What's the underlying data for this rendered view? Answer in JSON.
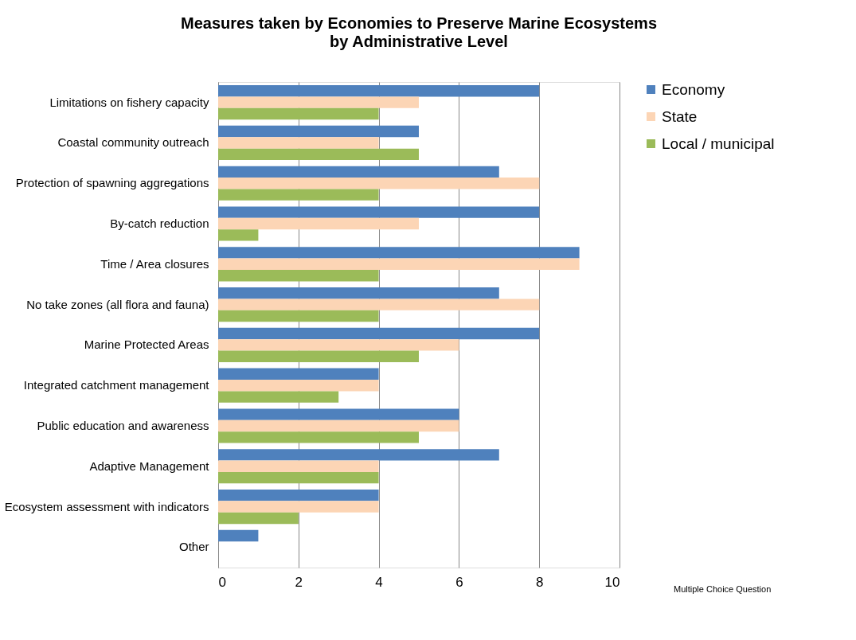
{
  "chart_data": {
    "type": "bar",
    "orientation": "horizontal",
    "title": "Measures taken by Economies to Preserve Marine Ecosystems",
    "subtitle": "by Administrative Level",
    "categories": [
      "Limitations on fishery capacity",
      "Coastal community outreach",
      "Protection of spawning aggregations",
      "By-catch reduction",
      "Time / Area closures",
      "No take zones (all flora and fauna)",
      "Marine Protected Areas",
      "Integrated catchment management",
      "Public education and awareness",
      "Adaptive Management",
      "Ecosystem assessment with indicators",
      "Other"
    ],
    "series": [
      {
        "name": "Economy",
        "color": "#4f81bd",
        "values": [
          8,
          5,
          7,
          8,
          9,
          7,
          8,
          4,
          6,
          7,
          4,
          1
        ]
      },
      {
        "name": "State",
        "color": "#fcd5b5",
        "values": [
          5,
          4,
          8,
          5,
          9,
          8,
          6,
          4,
          6,
          4,
          4,
          0
        ]
      },
      {
        "name": "Local / municipal",
        "color": "#9bbb59",
        "values": [
          4,
          5,
          4,
          1,
          4,
          4,
          5,
          3,
          5,
          4,
          2,
          0
        ]
      }
    ],
    "xlim": [
      0,
      10
    ],
    "xticks": [
      0,
      2,
      4,
      6,
      8,
      10
    ],
    "grid": "x",
    "legend": "right",
    "annotations": [
      "Multiple Choice Question"
    ]
  }
}
